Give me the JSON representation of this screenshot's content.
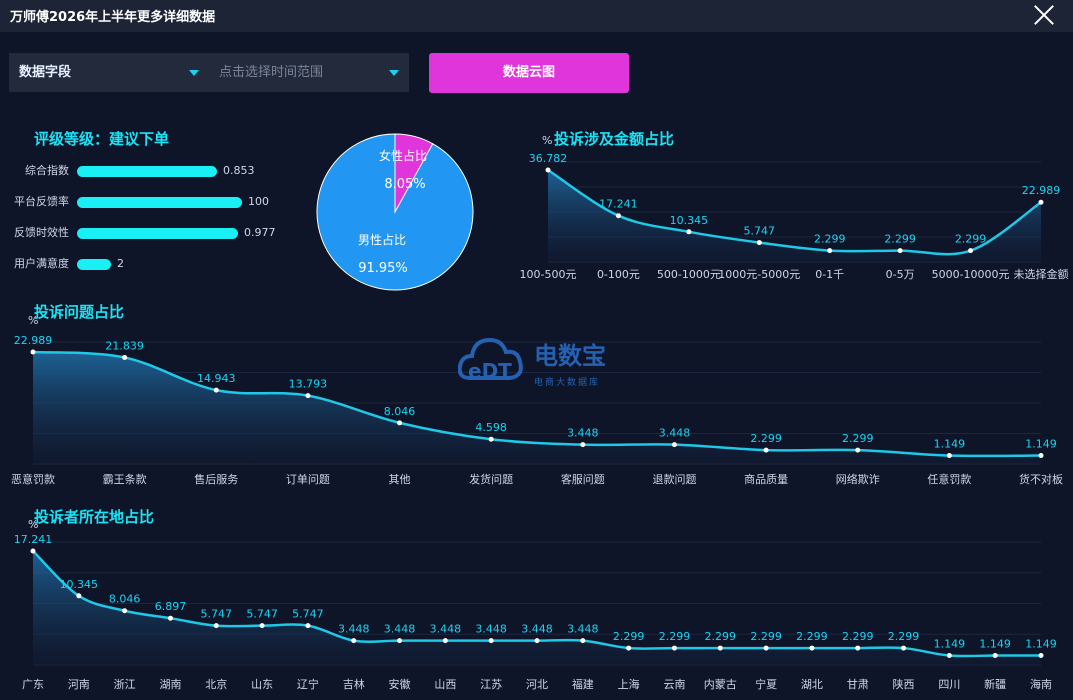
{
  "window": {
    "title": "万师傅2026年上半年更多详细数据"
  },
  "filters": {
    "field_label": "数据字段",
    "time_placeholder": "点击选择时间范围"
  },
  "cloud_button": "数据云图",
  "rating": {
    "title": "评级等级：建议下单",
    "items": [
      {
        "label": "综合指数",
        "value": "0.853",
        "fraction": 0.56
      },
      {
        "label": "平台反馈率",
        "value": "100",
        "fraction": 0.66
      },
      {
        "label": "反馈时效性",
        "value": "0.977",
        "fraction": 0.645
      },
      {
        "label": "用户满意度",
        "value": "2",
        "fraction": 0.135
      }
    ]
  },
  "gender_pie": {
    "slices": [
      {
        "label": "女性占比",
        "value": 8.05,
        "display": "8.05%",
        "color": "#e135dc"
      },
      {
        "label": "男性占比",
        "value": 91.95,
        "display": "91.95%",
        "color": "#2196f3"
      }
    ]
  },
  "watermark": {
    "brand": "电数宝",
    "sub": "电商大数据库",
    "logo_text": "eDT"
  },
  "colors": {
    "accent": "#19e3f5",
    "line": "#1ec8e6",
    "button": "#e135dc"
  },
  "chart_data": [
    {
      "type": "area",
      "title": "投诉涉及金额占比",
      "ylabel": "%",
      "categories": [
        "100-500元",
        "0-100元",
        "500-1000元",
        "1000元-5000元",
        "0-1千",
        "0-5万",
        "5000-10000元",
        "未选择金额"
      ],
      "values": [
        36.782,
        17.241,
        10.345,
        5.747,
        2.299,
        2.299,
        2.299,
        22.989
      ],
      "labels": [
        "36.782",
        "17.241",
        "10.345",
        "5.747",
        "2.299",
        "2.299",
        "2.299",
        "22.989"
      ],
      "ylim": [
        0,
        40
      ]
    },
    {
      "type": "area",
      "title": "投诉问题占比",
      "ylabel": "%",
      "categories": [
        "恶意罚款",
        "霸王条款",
        "售后服务",
        "订单问题",
        "其他",
        "发货问题",
        "客服问题",
        "退款问题",
        "商品质量",
        "网络欺诈",
        "任意罚款",
        "货不对板"
      ],
      "values": [
        22.989,
        21.839,
        14.943,
        13.793,
        8.046,
        4.598,
        3.448,
        3.448,
        2.299,
        2.299,
        1.149,
        1.149
      ],
      "labels": [
        "22.989",
        "21.839",
        "14.943",
        "13.793",
        "8.046",
        "4.598",
        "3.448",
        "3.448",
        "2.299",
        "2.299",
        "1.149",
        "1.149"
      ],
      "ylim": [
        0,
        24
      ]
    },
    {
      "type": "area",
      "title": "投诉者所在地占比",
      "ylabel": "%",
      "categories": [
        "广东",
        "河南",
        "浙江",
        "湖南",
        "北京",
        "山东",
        "辽宁",
        "吉林",
        "安徽",
        "山西",
        "江苏",
        "河北",
        "福建",
        "上海",
        "云南",
        "内蒙古",
        "宁夏",
        "湖北",
        "甘肃",
        "陕西",
        "四川",
        "新疆",
        "海南"
      ],
      "values": [
        17.241,
        10.345,
        8.046,
        6.897,
        5.747,
        5.747,
        5.747,
        3.448,
        3.448,
        3.448,
        3.448,
        3.448,
        3.448,
        2.299,
        2.299,
        2.299,
        2.299,
        2.299,
        2.299,
        2.299,
        1.149,
        1.149,
        1.149
      ],
      "labels": [
        "17.241",
        "10.345",
        "8.046",
        "6.897",
        "5.747",
        "5.747",
        "5.747",
        "3.448",
        "3.448",
        "3.448",
        "3.448",
        "3.448",
        "3.448",
        "2.299",
        "2.299",
        "2.299",
        "2.299",
        "2.299",
        "2.299",
        "2.299",
        "1.149",
        "1.149",
        "1.149"
      ],
      "ylim": [
        0,
        18
      ]
    }
  ]
}
